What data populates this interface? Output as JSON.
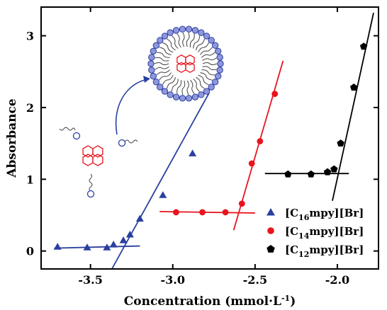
{
  "chart_data": {
    "type": "scatter",
    "xlabel": "Concentration (mmol·L⁻¹)",
    "ylabel": "Absorbance",
    "xlim": [
      -3.8,
      -1.75
    ],
    "ylim": [
      -0.25,
      3.4
    ],
    "x_ticks": [
      -3.5,
      -3.0,
      -2.5,
      -2.0
    ],
    "x_tick_labels": [
      "-3.5",
      "-3.0",
      "-2.5",
      "-2.0"
    ],
    "y_ticks": [
      0,
      1,
      2,
      3
    ],
    "y_tick_labels": [
      "0",
      "1",
      "2",
      "3"
    ],
    "legend_position": "bottom-right",
    "series": [
      {
        "name": "[C16mpy][Br]",
        "label_parts": [
          "[C",
          "16",
          "mpy][Br]"
        ],
        "color": "#2a3fa0",
        "marker": "triangle",
        "points": [
          [
            -3.7,
            0.06
          ],
          [
            -3.52,
            0.05
          ],
          [
            -3.4,
            0.05
          ],
          [
            -3.36,
            0.09
          ],
          [
            -3.3,
            0.15
          ],
          [
            -3.26,
            0.23
          ],
          [
            -3.2,
            0.45
          ],
          [
            -3.06,
            0.78
          ],
          [
            -2.88,
            1.36
          ]
        ],
        "fit_lines": [
          [
            [
              -3.72,
              0.04
            ],
            [
              -3.2,
              0.07
            ]
          ],
          [
            [
              -3.37,
              -0.25
            ],
            [
              -2.78,
              2.2
            ]
          ]
        ]
      },
      {
        "name": "[C14mpy][Br]",
        "label_parts": [
          "[C",
          "14",
          "mpy][Br]"
        ],
        "color": "#e8141e",
        "marker": "circle",
        "points": [
          [
            -2.98,
            0.54
          ],
          [
            -2.82,
            0.54
          ],
          [
            -2.68,
            0.54
          ],
          [
            -2.58,
            0.66
          ],
          [
            -2.52,
            1.22
          ],
          [
            -2.47,
            1.53
          ],
          [
            -2.38,
            2.19
          ]
        ],
        "fit_lines": [
          [
            [
              -3.08,
              0.55
            ],
            [
              -2.5,
              0.53
            ]
          ],
          [
            [
              -2.63,
              0.29
            ],
            [
              -2.33,
              2.65
            ]
          ]
        ]
      },
      {
        "name": "[C12mpy][Br]",
        "label_parts": [
          "[C",
          "12",
          "mpy][Br]"
        ],
        "color": "#000000",
        "marker": "pentagon",
        "points": [
          [
            -2.3,
            1.07
          ],
          [
            -2.16,
            1.07
          ],
          [
            -2.06,
            1.1
          ],
          [
            -2.02,
            1.14
          ],
          [
            -1.98,
            1.5
          ],
          [
            -1.9,
            2.28
          ],
          [
            -1.84,
            2.85
          ]
        ],
        "fit_lines": [
          [
            [
              -2.44,
              1.08
            ],
            [
              -1.93,
              1.08
            ]
          ],
          [
            [
              -2.03,
              0.7
            ],
            [
              -1.78,
              3.32
            ]
          ]
        ]
      }
    ]
  }
}
